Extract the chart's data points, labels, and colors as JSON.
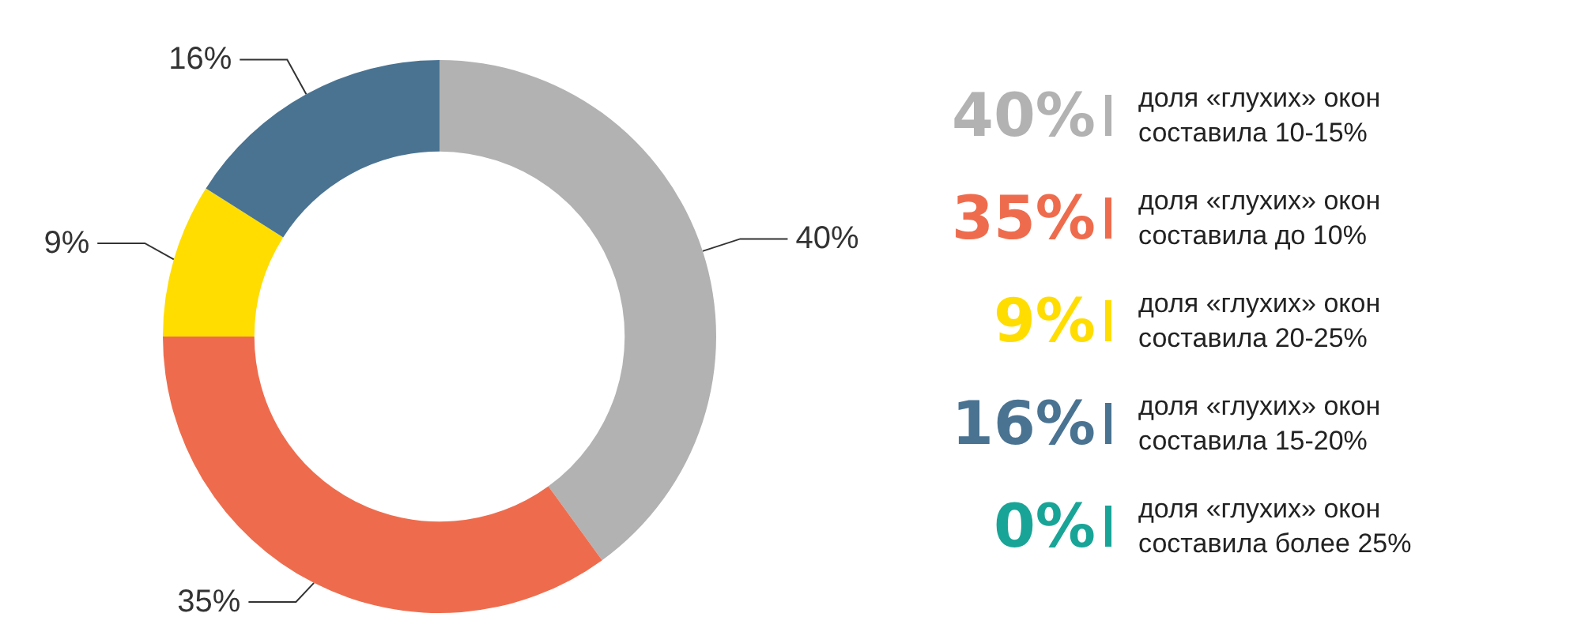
{
  "chart_data": {
    "type": "donut",
    "categories": [
      "доля «глухих» окон\nсоставила 10-15%",
      "доля «глухих» окон\nсоставила до 10%",
      "доля «глухих» окон\nсоставила 20-25%",
      "доля «глухих» окон\nсоставила 15-20%",
      "доля «глухих» окон\nсоставила более 25%"
    ],
    "values": [
      40,
      35,
      9,
      16,
      0
    ],
    "colors": [
      "#b2b2b2",
      "#ee6c4d",
      "#ffdd00",
      "#4a7392",
      "#18a597"
    ],
    "value_labels": [
      "40%",
      "35%",
      "9%",
      "16%",
      "0%"
    ],
    "legend": "right"
  }
}
